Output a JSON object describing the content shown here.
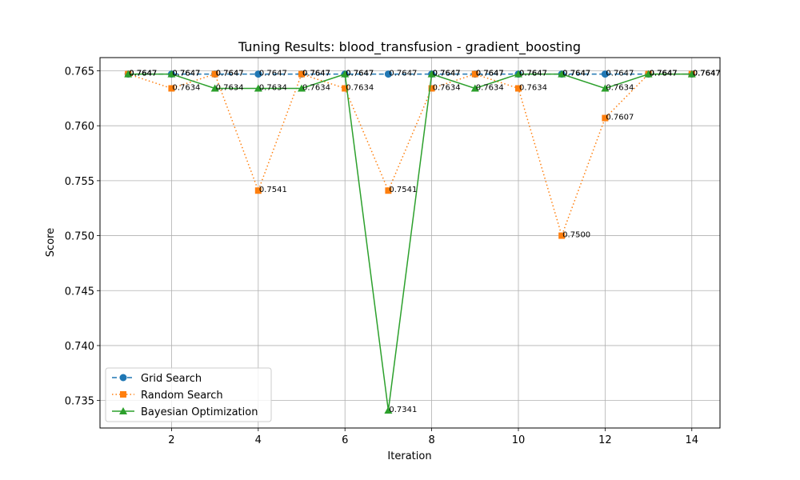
{
  "chart_data": {
    "type": "line",
    "title": "Tuning Results: blood_transfusion - gradient_boosting",
    "xlabel": "Iteration",
    "ylabel": "Score",
    "xlim": [
      0.35,
      14.65
    ],
    "ylim": [
      0.7325,
      0.7662
    ],
    "xticks": [
      2,
      4,
      6,
      8,
      10,
      12,
      14
    ],
    "yticks": [
      0.735,
      0.74,
      0.745,
      0.75,
      0.755,
      0.76,
      0.765
    ],
    "ytick_labels": [
      "0.735",
      "0.740",
      "0.745",
      "0.750",
      "0.755",
      "0.760",
      "0.765"
    ],
    "grid": true,
    "legend_position": "lower-left",
    "x": [
      1,
      2,
      3,
      4,
      5,
      6,
      7,
      8,
      9,
      10,
      11,
      12,
      13,
      14
    ],
    "series": [
      {
        "name": "Grid Search",
        "color": "#1f77b4",
        "linestyle": "dashed",
        "marker": "circle",
        "values": [
          0.7647,
          0.7647,
          0.7647,
          0.7647,
          0.7647,
          0.7647,
          0.7647,
          0.7647,
          0.7647,
          0.7647,
          0.7647,
          0.7647,
          0.7647,
          0.7647
        ],
        "labels": [
          "0.7647",
          "0.7647",
          "0.7647",
          "0.7647",
          "0.7647",
          "0.7647",
          "0.7647",
          "0.7647",
          "0.7647",
          "0.7647",
          "0.7647",
          "0.7647",
          "0.7647",
          "0.7647"
        ]
      },
      {
        "name": "Random Search",
        "color": "#ff7f0e",
        "linestyle": "dotted",
        "marker": "square",
        "values": [
          0.7647,
          0.7634,
          0.7647,
          0.7541,
          0.7647,
          0.7634,
          0.7541,
          0.7634,
          0.7647,
          0.7634,
          0.75,
          0.7607,
          0.7647,
          0.7647
        ],
        "labels": [
          "0.7647",
          "0.7634",
          "0.7647",
          "0.7541",
          "0.7647",
          "0.7634",
          "0.7541",
          "0.7634",
          "0.7647",
          "0.7634",
          "0.7500",
          "0.7607",
          "0.7647",
          "0.7647"
        ]
      },
      {
        "name": "Bayesian Optimization",
        "color": "#2ca02c",
        "linestyle": "solid",
        "marker": "triangle",
        "values": [
          0.7647,
          0.7647,
          0.7634,
          0.7634,
          0.7634,
          0.7647,
          0.7341,
          0.7647,
          0.7634,
          0.7647,
          0.7647,
          0.7634,
          0.7647,
          0.7647
        ],
        "labels": [
          "0.7647",
          "0.7647",
          "0.7634",
          "0.7634",
          "0.7634",
          "0.7647",
          "0.7341",
          "0.7647",
          "0.7634",
          "0.7647",
          "0.7647",
          "0.7634",
          "0.7647",
          "0.7647"
        ]
      }
    ]
  }
}
